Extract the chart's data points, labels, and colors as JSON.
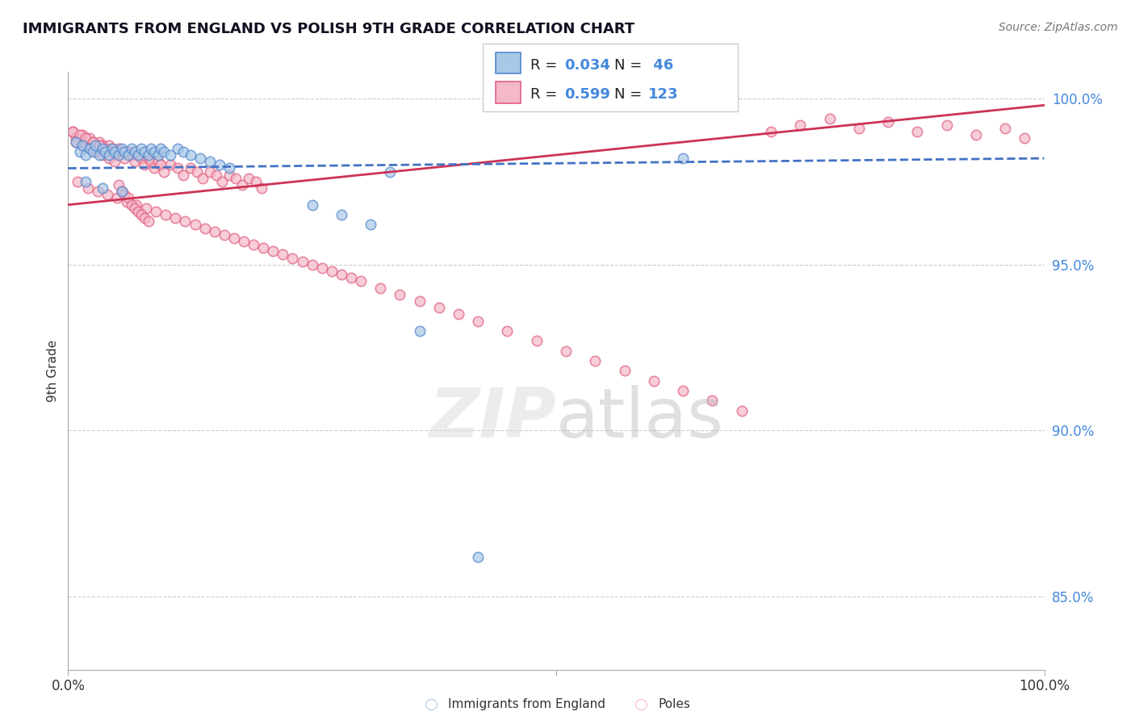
{
  "title": "IMMIGRANTS FROM ENGLAND VS POLISH 9TH GRADE CORRELATION CHART",
  "source": "Source: ZipAtlas.com",
  "ylabel": "9th Grade",
  "xlim": [
    0.0,
    1.0
  ],
  "ylim": [
    0.828,
    1.008
  ],
  "yticks": [
    0.85,
    0.9,
    0.95,
    1.0
  ],
  "ytick_labels": [
    "85.0%",
    "90.0%",
    "95.0%",
    "100.0%"
  ],
  "legend_blue_r": "0.034",
  "legend_blue_n": "46",
  "legend_pink_r": "0.599",
  "legend_pink_n": "123",
  "blue_fill": "#a8c8e8",
  "blue_edge": "#5588cc",
  "pink_fill": "#f5b8c8",
  "pink_edge": "#e06080",
  "trendline_blue_color": "#4472c4",
  "trendline_pink_color": "#cc3355",
  "blue_x": [
    0.008,
    0.012,
    0.015,
    0.018,
    0.022,
    0.025,
    0.028,
    0.032,
    0.035,
    0.038,
    0.042,
    0.045,
    0.048,
    0.052,
    0.055,
    0.058,
    0.062,
    0.065,
    0.068,
    0.072,
    0.075,
    0.078,
    0.082,
    0.085,
    0.088,
    0.092,
    0.095,
    0.098,
    0.105,
    0.112,
    0.118,
    0.125,
    0.135,
    0.145,
    0.155,
    0.165,
    0.018,
    0.035,
    0.055,
    0.33,
    0.36,
    0.42,
    0.63,
    0.25,
    0.28,
    0.31
  ],
  "blue_y": [
    0.987,
    0.984,
    0.986,
    0.983,
    0.985,
    0.984,
    0.986,
    0.983,
    0.985,
    0.984,
    0.983,
    0.985,
    0.984,
    0.983,
    0.985,
    0.984,
    0.983,
    0.985,
    0.984,
    0.983,
    0.985,
    0.984,
    0.983,
    0.985,
    0.984,
    0.983,
    0.985,
    0.984,
    0.983,
    0.985,
    0.984,
    0.983,
    0.982,
    0.981,
    0.98,
    0.979,
    0.975,
    0.973,
    0.972,
    0.978,
    0.93,
    0.862,
    0.982,
    0.968,
    0.965,
    0.962
  ],
  "pink_x": [
    0.005,
    0.008,
    0.012,
    0.015,
    0.018,
    0.022,
    0.025,
    0.028,
    0.032,
    0.035,
    0.038,
    0.042,
    0.045,
    0.048,
    0.052,
    0.055,
    0.058,
    0.062,
    0.065,
    0.068,
    0.072,
    0.075,
    0.078,
    0.082,
    0.085,
    0.088,
    0.092,
    0.095,
    0.098,
    0.105,
    0.112,
    0.118,
    0.125,
    0.132,
    0.138,
    0.145,
    0.152,
    0.158,
    0.165,
    0.172,
    0.178,
    0.185,
    0.192,
    0.198,
    0.01,
    0.02,
    0.03,
    0.04,
    0.05,
    0.06,
    0.07,
    0.08,
    0.09,
    0.1,
    0.11,
    0.12,
    0.13,
    0.14,
    0.15,
    0.16,
    0.17,
    0.18,
    0.19,
    0.2,
    0.21,
    0.22,
    0.23,
    0.24,
    0.25,
    0.26,
    0.27,
    0.28,
    0.29,
    0.3,
    0.32,
    0.34,
    0.36,
    0.38,
    0.4,
    0.42,
    0.45,
    0.48,
    0.51,
    0.54,
    0.57,
    0.6,
    0.63,
    0.66,
    0.69,
    0.72,
    0.75,
    0.78,
    0.81,
    0.84,
    0.87,
    0.9,
    0.93,
    0.96,
    0.98,
    0.005,
    0.008,
    0.012,
    0.015,
    0.018,
    0.022,
    0.025,
    0.028,
    0.032,
    0.035,
    0.038,
    0.042,
    0.045,
    0.048,
    0.052,
    0.055,
    0.058,
    0.062,
    0.065,
    0.068,
    0.072,
    0.075,
    0.078,
    0.082
  ],
  "pink_y": [
    0.99,
    0.988,
    0.987,
    0.989,
    0.986,
    0.988,
    0.987,
    0.985,
    0.987,
    0.986,
    0.984,
    0.986,
    0.985,
    0.983,
    0.985,
    0.984,
    0.982,
    0.984,
    0.983,
    0.981,
    0.983,
    0.982,
    0.98,
    0.982,
    0.981,
    0.979,
    0.981,
    0.98,
    0.978,
    0.98,
    0.979,
    0.977,
    0.979,
    0.978,
    0.976,
    0.978,
    0.977,
    0.975,
    0.977,
    0.976,
    0.974,
    0.976,
    0.975,
    0.973,
    0.975,
    0.973,
    0.972,
    0.971,
    0.97,
    0.969,
    0.968,
    0.967,
    0.966,
    0.965,
    0.964,
    0.963,
    0.962,
    0.961,
    0.96,
    0.959,
    0.958,
    0.957,
    0.956,
    0.955,
    0.954,
    0.953,
    0.952,
    0.951,
    0.95,
    0.949,
    0.948,
    0.947,
    0.946,
    0.945,
    0.943,
    0.941,
    0.939,
    0.937,
    0.935,
    0.933,
    0.93,
    0.927,
    0.924,
    0.921,
    0.918,
    0.915,
    0.912,
    0.909,
    0.906,
    0.99,
    0.992,
    0.994,
    0.991,
    0.993,
    0.99,
    0.992,
    0.989,
    0.991,
    0.988,
    0.99,
    0.987,
    0.989,
    0.986,
    0.988,
    0.985,
    0.987,
    0.984,
    0.986,
    0.983,
    0.985,
    0.982,
    0.984,
    0.981,
    0.974,
    0.972,
    0.971,
    0.97,
    0.968,
    0.967,
    0.966,
    0.965,
    0.964,
    0.963
  ]
}
